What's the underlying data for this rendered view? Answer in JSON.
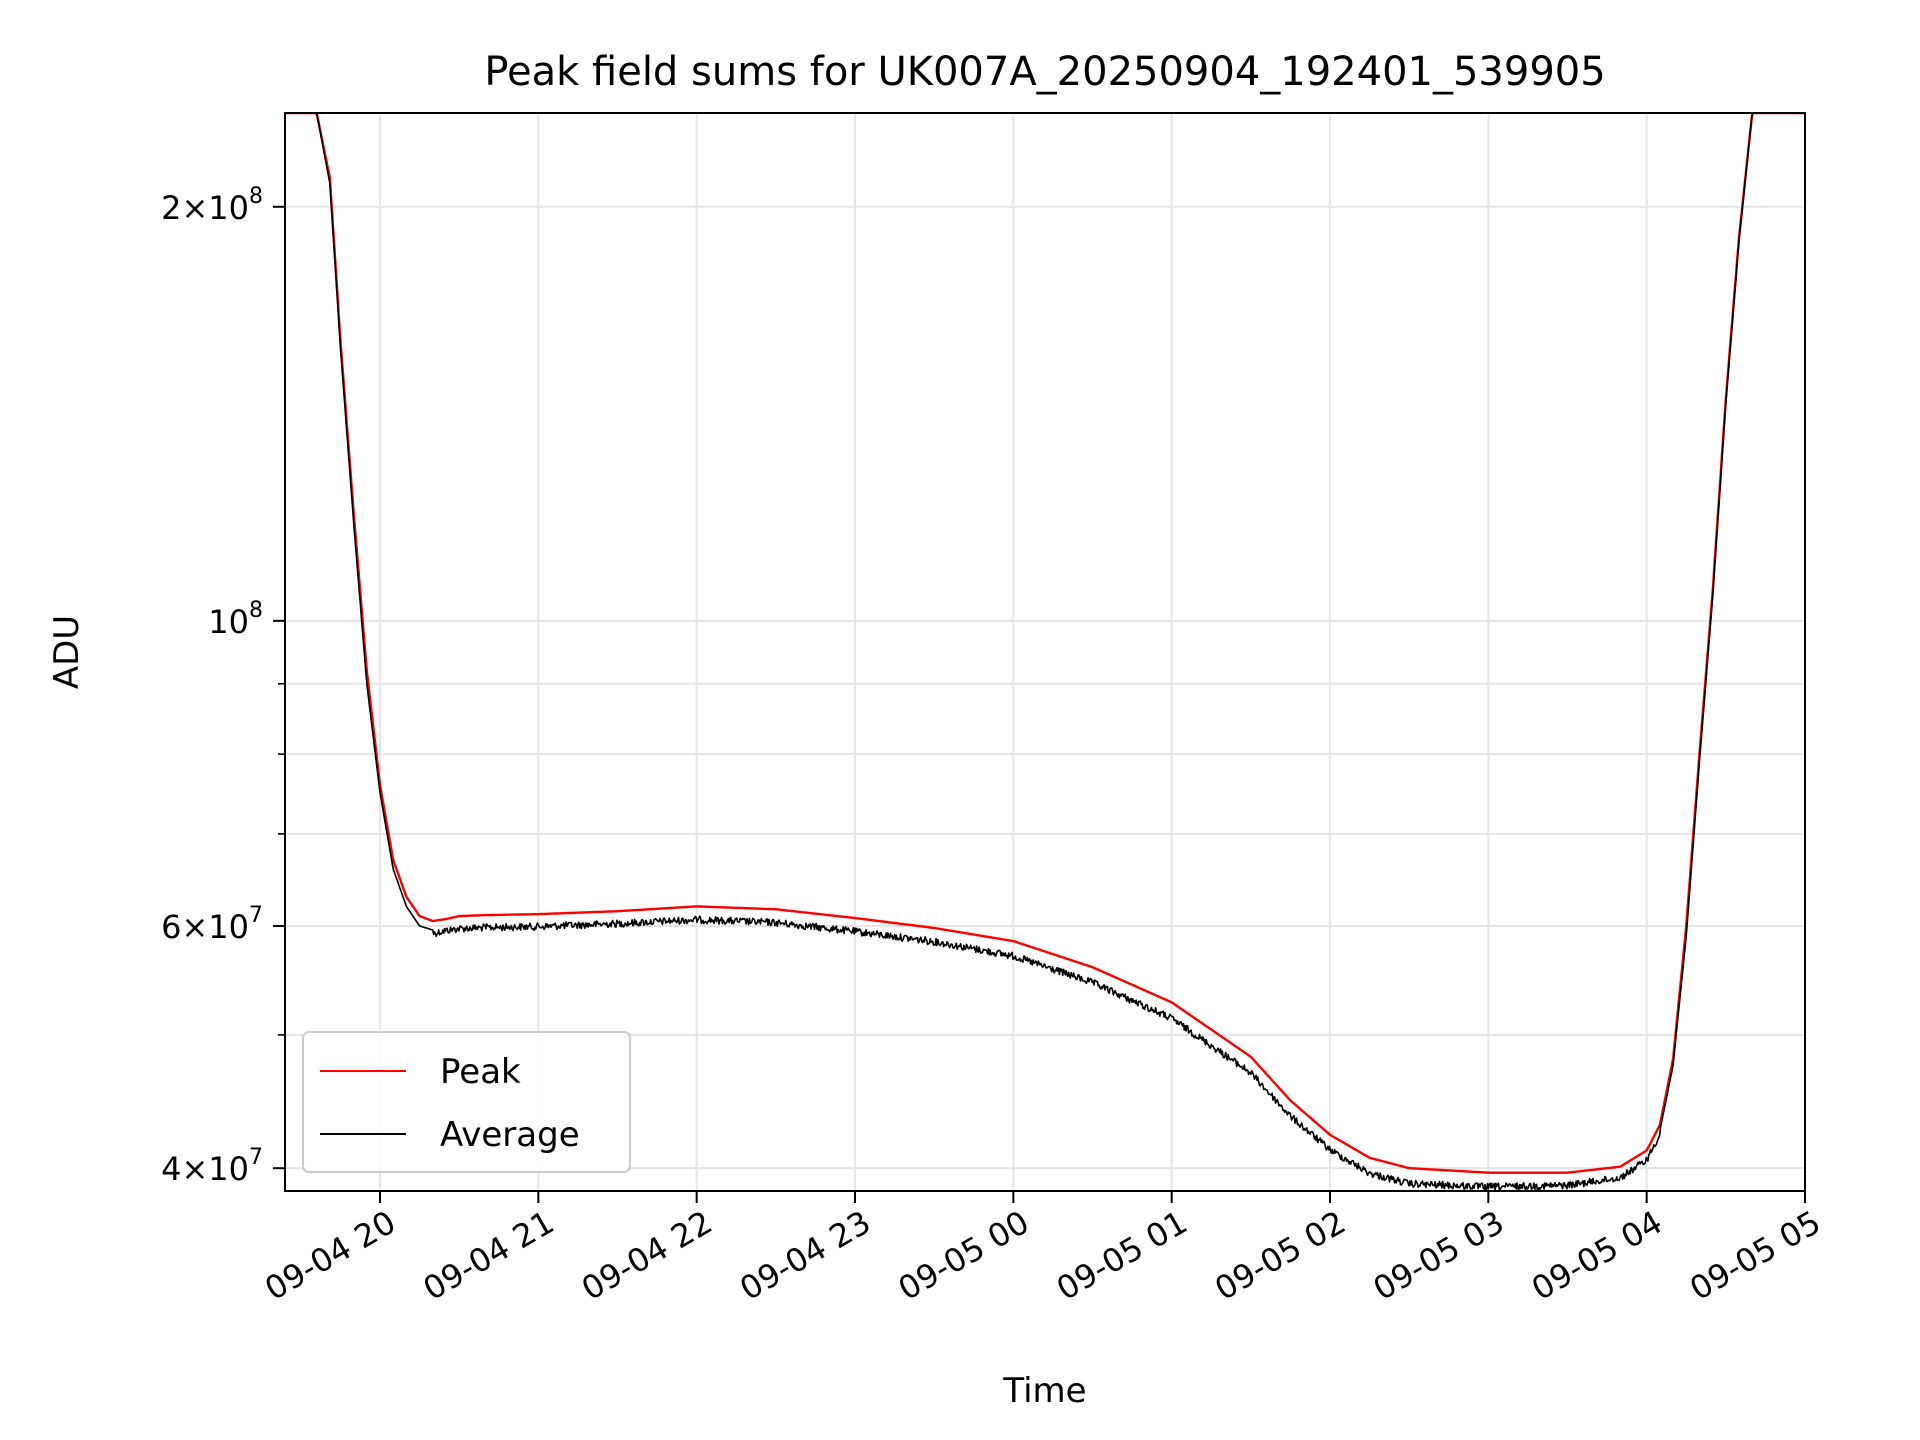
{
  "chart_data": {
    "type": "line",
    "title": "Peak field sums for UK007A_20250904_192401_539905",
    "xlabel": "Time",
    "ylabel": "ADU",
    "yscale": "log",
    "grid": true,
    "legend_placement": "lower-left",
    "x_ticks": [
      {
        "value": "2025-09-04T20:00",
        "label": "09-04 20"
      },
      {
        "value": "2025-09-04T21:00",
        "label": "09-04 21"
      },
      {
        "value": "2025-09-04T22:00",
        "label": "09-04 22"
      },
      {
        "value": "2025-09-04T23:00",
        "label": "09-04 23"
      },
      {
        "value": "2025-09-05T00:00",
        "label": "09-05 00"
      },
      {
        "value": "2025-09-05T01:00",
        "label": "09-05 01"
      },
      {
        "value": "2025-09-05T02:00",
        "label": "09-05 02"
      },
      {
        "value": "2025-09-05T03:00",
        "label": "09-05 03"
      },
      {
        "value": "2025-09-05T04:00",
        "label": "09-05 04"
      },
      {
        "value": "2025-09-05T05:00",
        "label": "09-05 05"
      }
    ],
    "y_ticks": [
      {
        "value": 40000000,
        "mantissa": "4",
        "exponent": "7"
      },
      {
        "value": 60000000,
        "mantissa": "6",
        "exponent": "7"
      },
      {
        "value": 100000000,
        "mantissa": "",
        "exponent": "8"
      },
      {
        "value": 200000000,
        "mantissa": "2",
        "exponent": "8"
      }
    ],
    "y_minor_ticks": [
      50000000,
      70000000,
      80000000,
      90000000
    ],
    "xlim": [
      "2025-09-04T19:24",
      "2025-09-05T05:00"
    ],
    "ylim": [
      38500000,
      234000000
    ],
    "series": [
      {
        "name": "Peak",
        "color": "#ff0000",
        "x": [
          "2025-09-04T19:24",
          "2025-09-04T19:36",
          "2025-09-04T19:41",
          "2025-09-04T19:45",
          "2025-09-04T19:50",
          "2025-09-04T19:55",
          "2025-09-04T20:00",
          "2025-09-04T20:05",
          "2025-09-04T20:10",
          "2025-09-04T20:15",
          "2025-09-04T20:20",
          "2025-09-04T20:25",
          "2025-09-04T20:30",
          "2025-09-04T20:40",
          "2025-09-04T21:00",
          "2025-09-04T21:30",
          "2025-09-04T22:00",
          "2025-09-04T22:30",
          "2025-09-04T23:00",
          "2025-09-04T23:30",
          "2025-09-05T00:00",
          "2025-09-05T00:30",
          "2025-09-05T01:00",
          "2025-09-05T01:30",
          "2025-09-05T01:45",
          "2025-09-05T02:00",
          "2025-09-05T02:15",
          "2025-09-05T02:30",
          "2025-09-05T03:00",
          "2025-09-05T03:30",
          "2025-09-05T03:50",
          "2025-09-05T04:00",
          "2025-09-05T04:05",
          "2025-09-05T04:10",
          "2025-09-05T04:15",
          "2025-09-05T04:20",
          "2025-09-05T04:25",
          "2025-09-05T04:30",
          "2025-09-05T04:35",
          "2025-09-05T04:40",
          "2025-09-05T04:45",
          "2025-09-05T05:00"
        ],
        "y": [
          234000000,
          234000000,
          210000000,
          160000000,
          120000000,
          92000000,
          76000000,
          67000000,
          63000000,
          61000000,
          60500000,
          60700000,
          61000000,
          61100000,
          61200000,
          61500000,
          62000000,
          61700000,
          60800000,
          59800000,
          58500000,
          56000000,
          52800000,
          48200000,
          44800000,
          42300000,
          40700000,
          40000000,
          39700000,
          39700000,
          40100000,
          41200000,
          43000000,
          48000000,
          60000000,
          80000000,
          105000000,
          145000000,
          190000000,
          234000000,
          234000000,
          234000000
        ]
      },
      {
        "name": "Average",
        "color": "#000000",
        "x": [
          "2025-09-04T19:24",
          "2025-09-04T19:36",
          "2025-09-04T19:41",
          "2025-09-04T19:45",
          "2025-09-04T19:50",
          "2025-09-04T19:55",
          "2025-09-04T20:00",
          "2025-09-04T20:05",
          "2025-09-04T20:10",
          "2025-09-04T20:15",
          "2025-09-04T20:20",
          "2025-09-04T20:25",
          "2025-09-04T20:30",
          "2025-09-04T20:40",
          "2025-09-04T21:00",
          "2025-09-04T21:30",
          "2025-09-04T22:00",
          "2025-09-04T22:30",
          "2025-09-04T23:00",
          "2025-09-04T23:30",
          "2025-09-05T00:00",
          "2025-09-05T00:30",
          "2025-09-05T01:00",
          "2025-09-05T01:30",
          "2025-09-05T01:45",
          "2025-09-05T02:00",
          "2025-09-05T02:15",
          "2025-09-05T02:30",
          "2025-09-05T03:00",
          "2025-09-05T03:30",
          "2025-09-05T03:50",
          "2025-09-05T04:00",
          "2025-09-05T04:05",
          "2025-09-05T04:10",
          "2025-09-05T04:15",
          "2025-09-05T04:20",
          "2025-09-05T04:25",
          "2025-09-05T04:30",
          "2025-09-05T04:35",
          "2025-09-05T04:40",
          "2025-09-05T04:45",
          "2025-09-05T05:00"
        ],
        "y": [
          234000000,
          234000000,
          208000000,
          158000000,
          118000000,
          90000000,
          75000000,
          66000000,
          62000000,
          60000000,
          59600000,
          59900000,
          60100000,
          60200000,
          60300000,
          60600000,
          61000000,
          60700000,
          59800000,
          58800000,
          57400000,
          54900000,
          51700000,
          47200000,
          43900000,
          41500000,
          39900000,
          39200000,
          39000000,
          39100000,
          39600000,
          40800000,
          42600000,
          47500000,
          59000000,
          79000000,
          104000000,
          144000000,
          189000000,
          234000000,
          234000000,
          234000000
        ],
        "noise_amplitude_fraction": 0.012
      }
    ]
  }
}
